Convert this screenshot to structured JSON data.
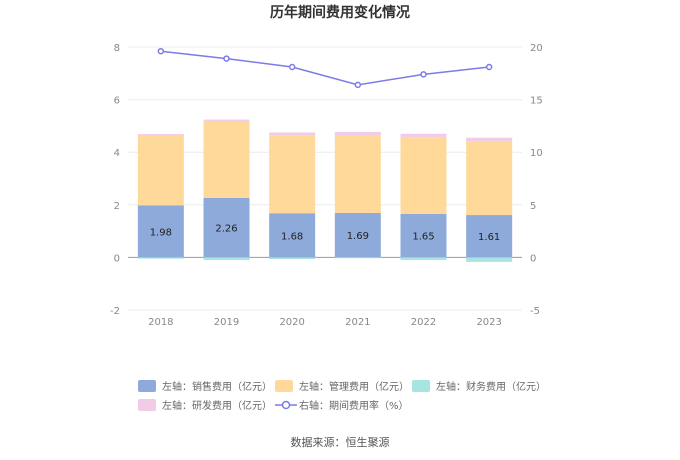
{
  "chart_data": {
    "type": "bar",
    "title": "历年期间费用变化情况",
    "categories": [
      "2018",
      "2019",
      "2020",
      "2021",
      "2022",
      "2023"
    ],
    "left_axis": {
      "ylim": [
        -2,
        8
      ],
      "ticks": [
        "-2",
        "0",
        "2",
        "4",
        "6",
        "8"
      ]
    },
    "right_axis": {
      "ylim": [
        -5,
        20
      ],
      "ticks": [
        "-5",
        "0",
        "5",
        "10",
        "15",
        "20"
      ]
    },
    "series": [
      {
        "name": "左轴：销售费用（亿元）",
        "color": "#8eaadb",
        "values": [
          1.98,
          2.26,
          1.68,
          1.69,
          1.65,
          1.61
        ],
        "labels": [
          "1.98",
          "2.26",
          "1.68",
          "1.69",
          "1.65",
          "1.61"
        ]
      },
      {
        "name": "左轴：管理费用（亿元）",
        "color": "#ffd99a",
        "values": [
          2.65,
          2.9,
          2.97,
          2.93,
          2.9,
          2.79
        ]
      },
      {
        "name": "左轴：财务费用（亿元）",
        "color": "#a8e4e0",
        "values": [
          -0.05,
          -0.1,
          -0.06,
          -0.03,
          -0.1,
          -0.17
        ]
      },
      {
        "name": "左轴：研发费用（亿元）",
        "color": "#f0cce6",
        "values": [
          0.06,
          0.08,
          0.1,
          0.15,
          0.15,
          0.15
        ]
      },
      {
        "name": "右轴：期间费用率（%）",
        "color": "#7b7be8",
        "type": "line",
        "axis": "right",
        "values": [
          19.6,
          18.9,
          18.1,
          16.4,
          17.4,
          18.1
        ]
      }
    ],
    "legend_position": "bottom",
    "grid": true
  },
  "source_text": "数据来源：恒生聚源"
}
